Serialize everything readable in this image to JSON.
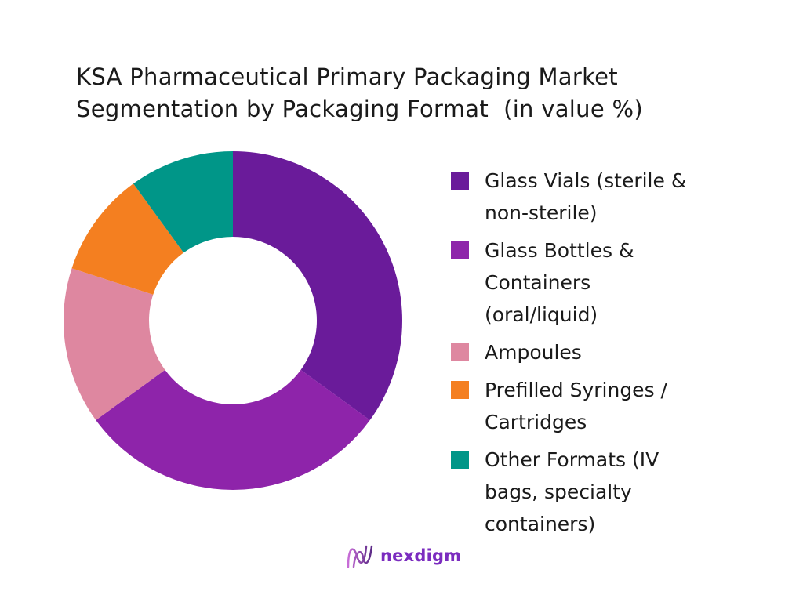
{
  "chart_data": {
    "type": "pie",
    "variant": "donut",
    "title": [
      "KSA Pharmaceutical Primary Packaging Market",
      "Segmentation by Packaging Format  (in value %)"
    ],
    "unit": "%",
    "legend_position": "right",
    "categories": [
      "Glass Vials (sterile & non-sterile)",
      "Glass Bottles & Containers (oral/liquid)",
      "Ampoules",
      "Prefilled Syringes / Cartridges",
      "Other Formats (IV bags, specialty containers)"
    ],
    "values": [
      35,
      30,
      15,
      10,
      10
    ],
    "colors": [
      "#6a1b9a",
      "#8e24aa",
      "#de87a0",
      "#f47f20",
      "#009688"
    ]
  },
  "legend_lines": [
    [
      "Glass Vials (sterile &",
      "non-sterile)"
    ],
    [
      "Glass Bottles &",
      "Containers",
      "(oral/liquid)"
    ],
    [
      "Ampoules"
    ],
    [
      "Prefilled Syringes /",
      "Cartridges"
    ],
    [
      "Other Formats (IV",
      "bags, specialty",
      "containers)"
    ]
  ],
  "brand": {
    "name": "nexdigm"
  }
}
